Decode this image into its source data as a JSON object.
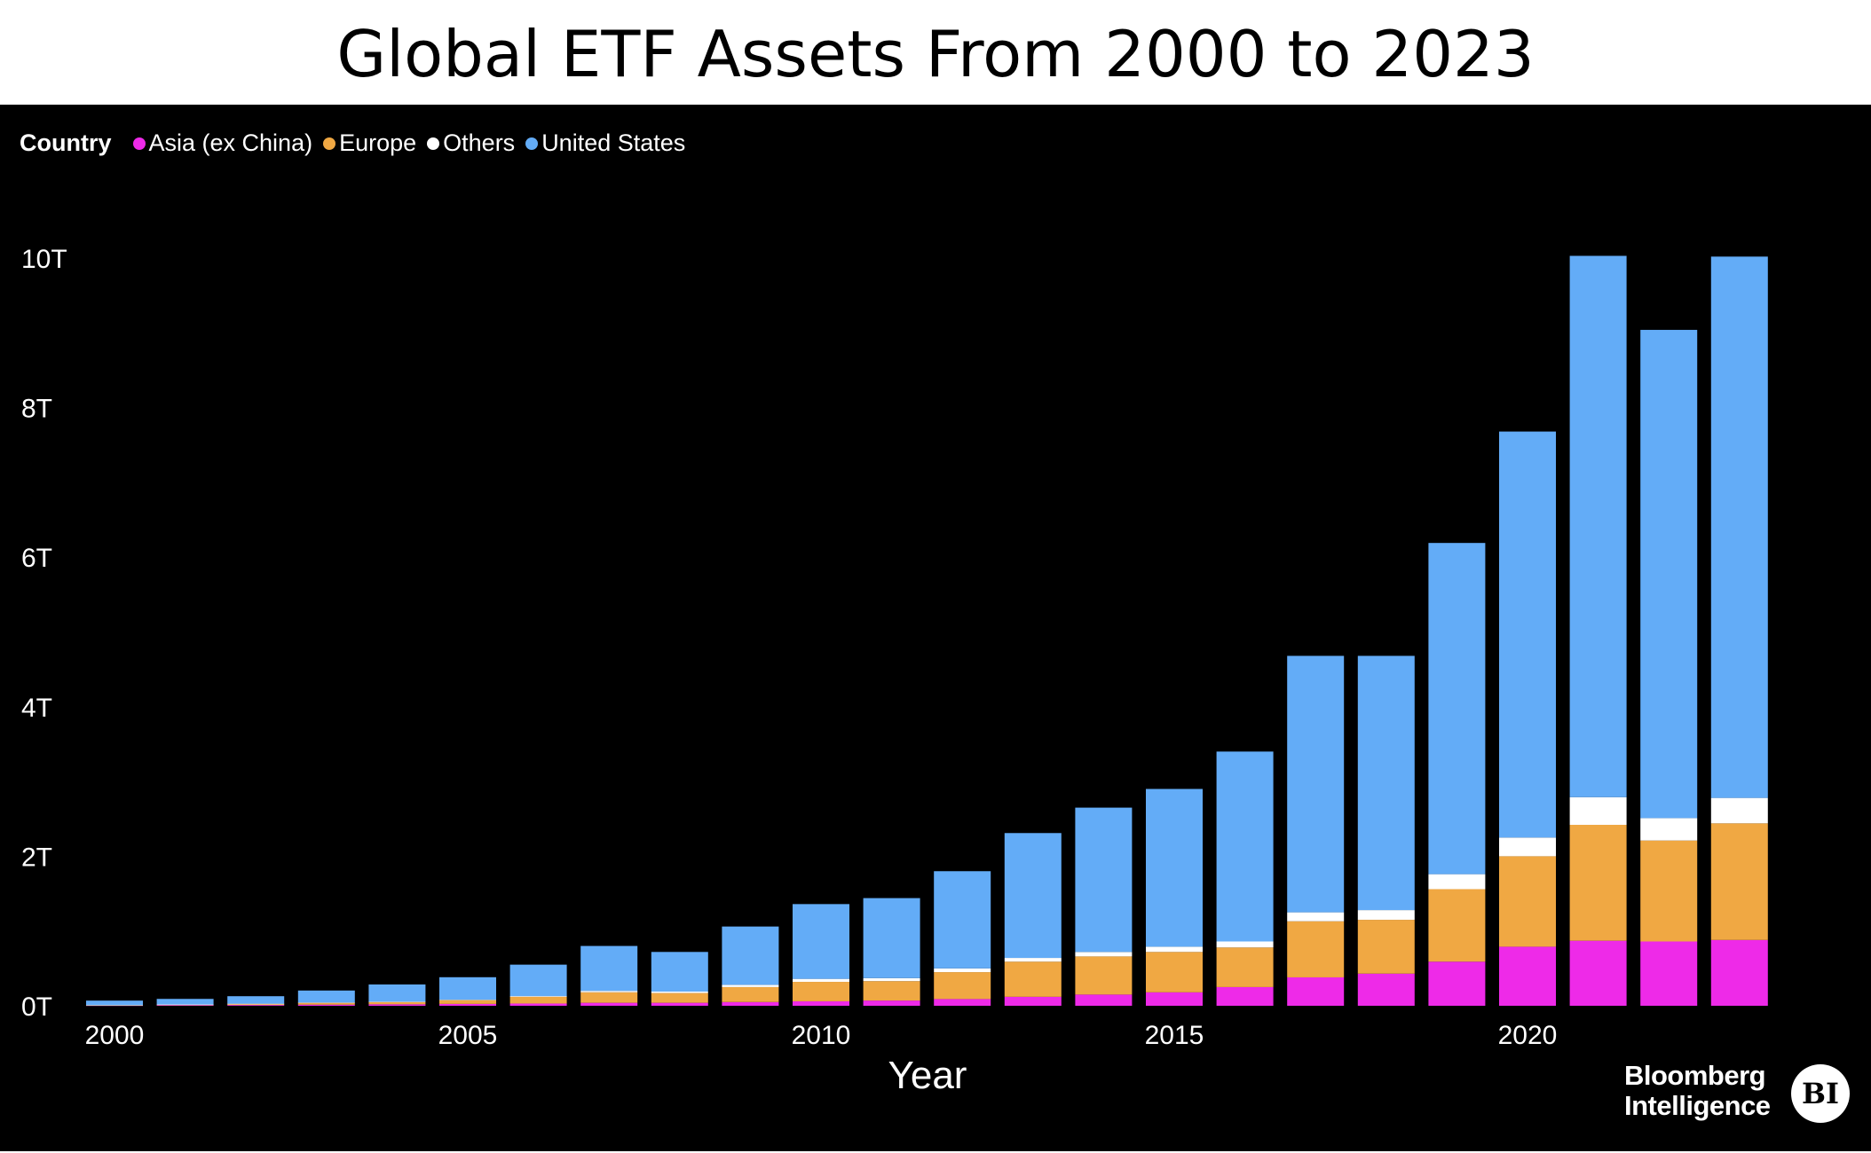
{
  "chart_data": {
    "type": "bar",
    "stacked": true,
    "title": "Global ETF Assets From 2000 to 2023",
    "xlabel": "Year",
    "ylabel": "",
    "legend_title": "Country",
    "legend_position": "top-left",
    "ylim": [
      0,
      10.4
    ],
    "y_ticks": [
      0,
      2,
      4,
      6,
      8,
      10
    ],
    "y_tick_labels": [
      "0T",
      "2T",
      "4T",
      "6T",
      "8T",
      "10T"
    ],
    "x_ticks": [
      2000,
      2005,
      2010,
      2015,
      2020
    ],
    "x_tick_labels": [
      "2000",
      "2005",
      "2010",
      "2015",
      "2020"
    ],
    "grid": false,
    "categories": [
      2000,
      2001,
      2002,
      2003,
      2004,
      2005,
      2006,
      2007,
      2008,
      2009,
      2010,
      2011,
      2012,
      2013,
      2014,
      2015,
      2016,
      2017,
      2018,
      2019,
      2020,
      2021,
      2022,
      2023
    ],
    "series": [
      {
        "name": "Asia (ex China)",
        "color": "#ee2ae8",
        "values": [
          0.005,
          0.008,
          0.01,
          0.015,
          0.02,
          0.025,
          0.03,
          0.04,
          0.04,
          0.05,
          0.06,
          0.07,
          0.09,
          0.12,
          0.15,
          0.18,
          0.25,
          0.38,
          0.43,
          0.59,
          0.79,
          0.87,
          0.86,
          0.88
        ]
      },
      {
        "name": "Europe",
        "color": "#f0a843",
        "values": [
          0.003,
          0.007,
          0.015,
          0.025,
          0.03,
          0.05,
          0.09,
          0.14,
          0.13,
          0.2,
          0.26,
          0.26,
          0.36,
          0.47,
          0.51,
          0.54,
          0.53,
          0.75,
          0.72,
          0.97,
          1.21,
          1.55,
          1.35,
          1.56
        ]
      },
      {
        "name": "Others",
        "color": "#ffffff",
        "values": [
          0.001,
          0.002,
          0.003,
          0.004,
          0.005,
          0.007,
          0.01,
          0.02,
          0.02,
          0.03,
          0.04,
          0.04,
          0.05,
          0.05,
          0.06,
          0.07,
          0.08,
          0.12,
          0.13,
          0.2,
          0.25,
          0.37,
          0.3,
          0.34
        ]
      },
      {
        "name": "United States",
        "color": "#63acf7",
        "values": [
          0.06,
          0.075,
          0.1,
          0.16,
          0.23,
          0.3,
          0.42,
          0.6,
          0.53,
          0.78,
          1.0,
          1.07,
          1.3,
          1.67,
          1.93,
          2.11,
          2.54,
          3.43,
          3.4,
          4.43,
          5.43,
          7.24,
          6.53,
          7.24
        ]
      }
    ]
  },
  "brand": {
    "line1": "Bloomberg",
    "line2": "Intelligence",
    "badge": "BI"
  }
}
